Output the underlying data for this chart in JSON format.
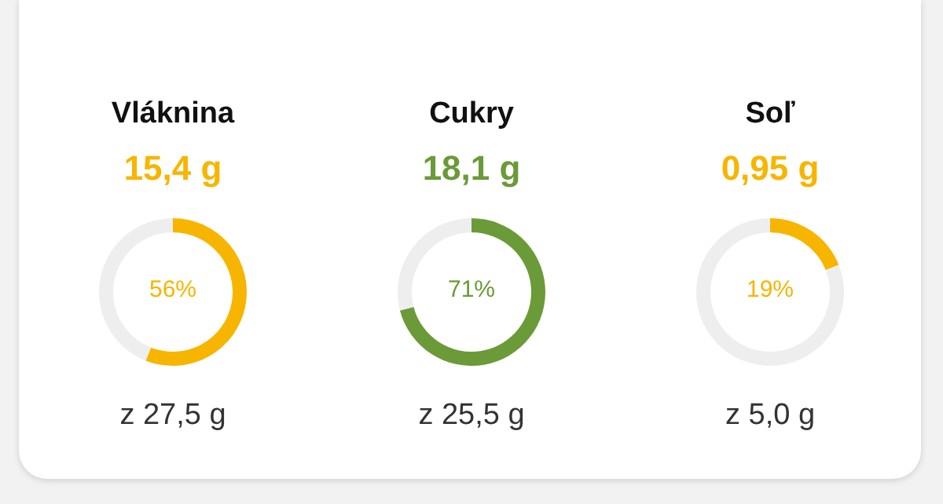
{
  "chart_data": [
    {
      "type": "donut",
      "title": "Vláknina",
      "subtitle": "15,4 g",
      "categories": [
        null,
        null
      ],
      "values": [
        56,
        44
      ],
      "colors": [
        "#f7b500",
        "#eeeeee"
      ],
      "annotations": [
        "56%",
        "z 27,5 g"
      ]
    },
    {
      "type": "donut",
      "title": "Cukry",
      "subtitle": "18,1 g",
      "categories": [
        null,
        null
      ],
      "values": [
        71,
        29
      ],
      "colors": [
        "#6b9a38",
        "#eeeeee"
      ],
      "annotations": [
        "71%",
        "z 25,5 g"
      ]
    },
    {
      "type": "donut",
      "title": "Soľ",
      "subtitle": "0,95 g",
      "categories": [
        null,
        null
      ],
      "values": [
        19,
        81
      ],
      "colors": [
        "#f7b500",
        "#eeeeee"
      ],
      "annotations": [
        "19%",
        "z 5,0 g"
      ]
    }
  ]
}
